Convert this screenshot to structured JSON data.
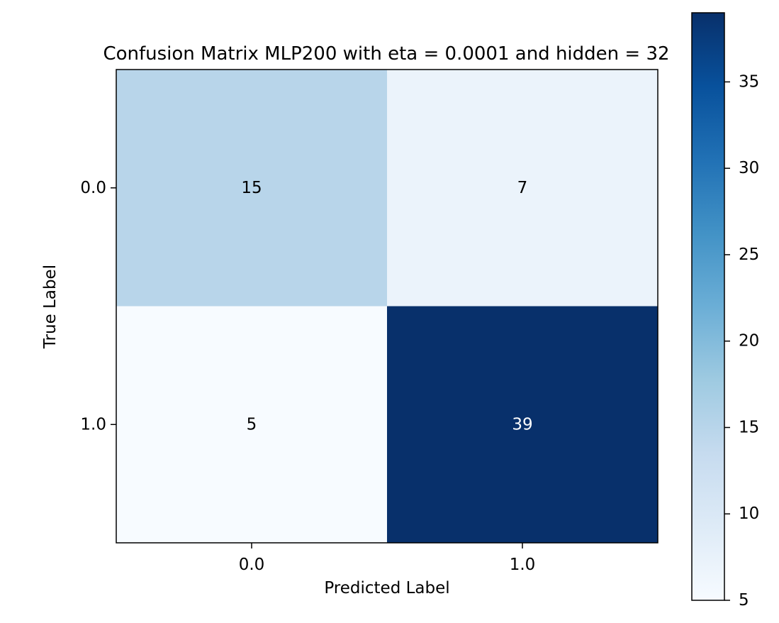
{
  "chart_data": {
    "type": "heatmap",
    "title": "Confusion Matrix MLP200 with eta = 0.0001 and hidden = 32",
    "xlabel": "Predicted Label",
    "ylabel": "True Label",
    "x_categories": [
      "0.0",
      "1.0"
    ],
    "y_categories": [
      "0.0",
      "1.0"
    ],
    "values": [
      [
        15,
        7
      ],
      [
        5,
        39
      ]
    ],
    "colormap": "Blues",
    "colorbar": {
      "range": [
        5,
        39
      ],
      "ticks": [
        5,
        10,
        15,
        20,
        25,
        30,
        35
      ]
    },
    "grid": false
  }
}
